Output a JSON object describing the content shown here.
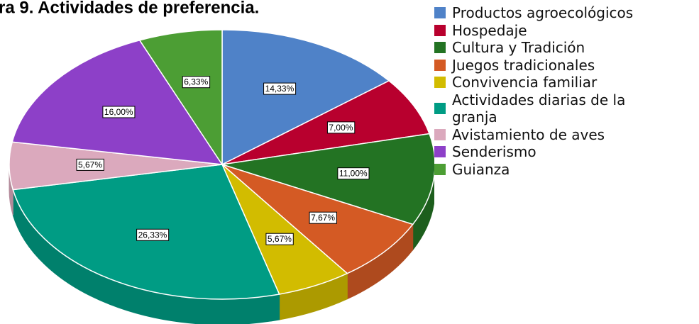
{
  "chart_data": {
    "type": "pie",
    "title": "ra 9. Actividades de preferencia.",
    "categories": [
      "Productos agroecológicos",
      "Hospedaje",
      "Cultura y Tradición",
      "Juegos tradicionales",
      "Convivencia familiar",
      "Actividades diarias de la granja",
      "Avistamiento de aves",
      "Senderismo",
      "Guianza"
    ],
    "values": [
      14.33,
      7.0,
      11.0,
      7.67,
      5.67,
      26.33,
      5.67,
      16.0,
      6.33
    ],
    "value_labels": [
      "14,33%",
      "7,00%",
      "11,00%",
      "7,67%",
      "5,67%",
      "26,33%",
      "5,67%",
      "16,00%",
      "6,33%"
    ],
    "colors": [
      "#4f82c8",
      "#b8002e",
      "#237323",
      "#d45a24",
      "#d2bc00",
      "#009c84",
      "#dba9bd",
      "#8d40c8",
      "#4c9e34"
    ],
    "legend": "right"
  }
}
